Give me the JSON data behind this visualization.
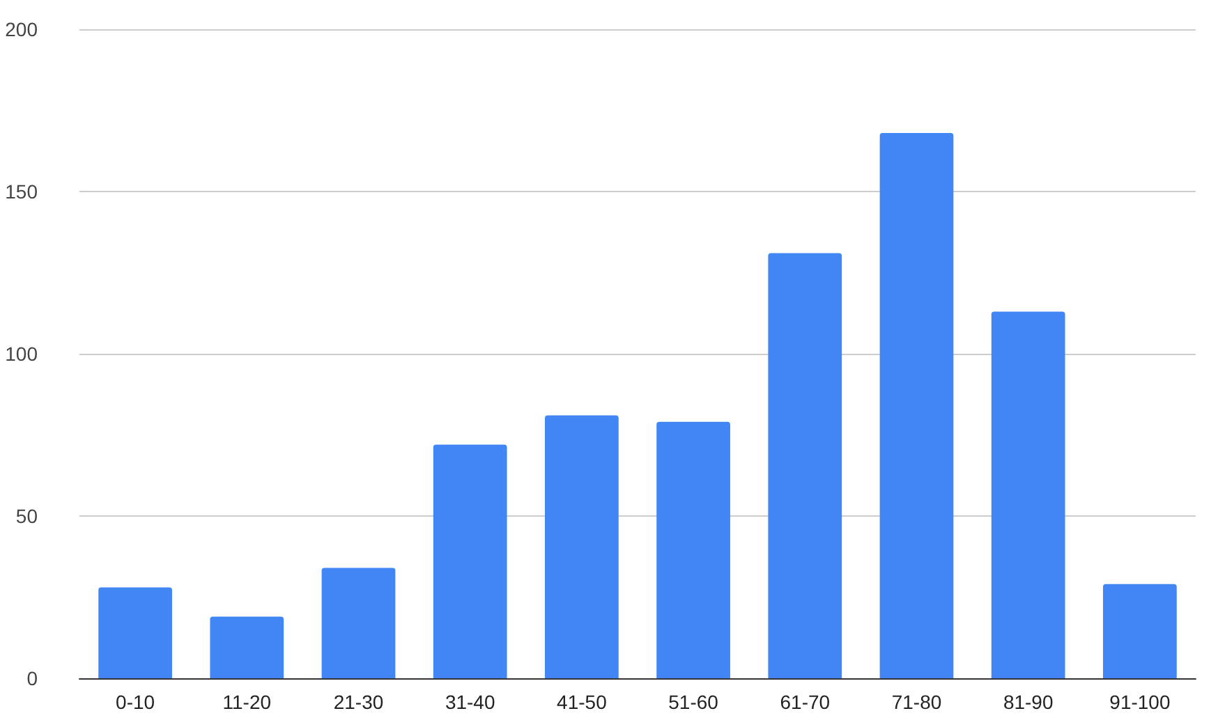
{
  "chart_data": {
    "type": "bar",
    "categories": [
      "0-10",
      "11-20",
      "21-30",
      "31-40",
      "41-50",
      "51-60",
      "61-70",
      "71-80",
      "81-90",
      "91-100"
    ],
    "values": [
      28,
      19,
      34,
      72,
      81,
      79,
      131,
      168,
      113,
      29
    ],
    "color": "#4285f4",
    "ylim": [
      0,
      200
    ],
    "yticks": [
      0,
      50,
      100,
      150,
      200
    ],
    "grid": "y"
  }
}
